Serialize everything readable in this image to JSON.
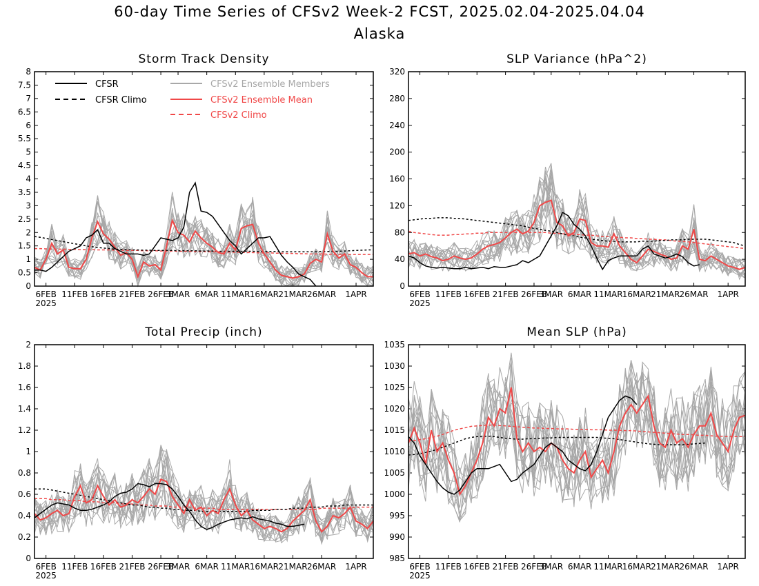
{
  "header": {
    "title": "60-day Time Series of CFSv2 Week-2 FCST, 2025.02.04-2025.04.04",
    "subtitle": "Alaska"
  },
  "colors": {
    "cfsr": "#000000",
    "members": "#a8a8a8",
    "ens_mean": "#f04848",
    "cfsv2_climo": "#f04848"
  },
  "legend": {
    "cfsr": "CFSR",
    "cfsr_climo": "CFSR Climo",
    "members": "CFSv2 Ensemble Members",
    "ens_mean": "CFSv2 Ensemble Mean",
    "cfsv2_climo": "CFSv2 Climo"
  },
  "x_ticks": [
    "6FEB",
    "11FEB",
    "16FEB",
    "21FEB",
    "26FEB",
    "3MAR",
    "6MAR",
    "11MAR",
    "16MAR",
    "21MAR",
    "26MAR",
    "1APR"
  ],
  "x_year": "2025",
  "chart_data": [
    {
      "type": "line",
      "title": "Storm Track Density",
      "ylim": [
        0,
        8
      ],
      "yticks": [
        "0",
        "0.5",
        "1",
        "1.5",
        "2",
        "2.5",
        "3",
        "3.5",
        "4",
        "4.5",
        "5",
        "5.5",
        "6",
        "6.5",
        "7",
        "7.5",
        "8"
      ],
      "x": [
        "2025-02-04",
        "2025-04-04"
      ],
      "cfsr": [
        0.6,
        0.6,
        0.55,
        0.7,
        0.9,
        1.1,
        1.3,
        1.4,
        1.5,
        1.8,
        1.9,
        2.1,
        1.6,
        1.6,
        1.4,
        1.3,
        1.2,
        1.2,
        1.2,
        1.15,
        1.2,
        1.5,
        1.8,
        1.75,
        1.7,
        1.8,
        2.2,
        3.5,
        3.85,
        2.8,
        2.75,
        2.6,
        2.3,
        2.0,
        1.7,
        1.5,
        1.2,
        1.4,
        1.6,
        1.8,
        1.8,
        1.85,
        1.5,
        1.15,
        0.9,
        0.7,
        0.45,
        0.35,
        0.25,
        0.0
      ],
      "cfsr_climo": [
        1.85,
        1.82,
        1.78,
        1.74,
        1.7,
        1.66,
        1.62,
        1.58,
        1.54,
        1.5,
        1.47,
        1.44,
        1.42,
        1.4,
        1.38,
        1.37,
        1.36,
        1.35,
        1.35,
        1.34,
        1.34,
        1.33,
        1.33,
        1.33,
        1.33,
        1.32,
        1.32,
        1.32,
        1.32,
        1.31,
        1.31,
        1.31,
        1.3,
        1.3,
        1.3,
        1.3,
        1.3,
        1.3,
        1.3,
        1.29,
        1.29,
        1.29,
        1.29,
        1.28,
        1.28,
        1.28,
        1.28,
        1.28,
        1.28,
        1.28,
        1.29,
        1.29,
        1.3,
        1.3,
        1.31,
        1.32,
        1.33,
        1.34,
        1.35,
        1.35
      ],
      "ens_mean": [
        0.7,
        0.6,
        1.0,
        1.6,
        1.2,
        1.35,
        0.7,
        0.65,
        0.65,
        1.0,
        1.8,
        2.4,
        1.95,
        1.75,
        1.45,
        1.15,
        1.25,
        1.0,
        0.35,
        0.9,
        0.75,
        0.8,
        0.6,
        1.5,
        2.45,
        2.0,
        1.9,
        1.65,
        2.05,
        1.8,
        1.6,
        1.45,
        1.25,
        1.2,
        1.6,
        1.35,
        2.15,
        2.25,
        2.3,
        1.6,
        1.2,
        0.9,
        0.6,
        0.4,
        0.35,
        0.3,
        0.35,
        0.45,
        0.85,
        1.0,
        0.9,
        1.95,
        1.3,
        1.05,
        1.2,
        0.8,
        0.7,
        0.5,
        0.35,
        0.35
      ],
      "cfsv2_climo": [
        1.4,
        1.4,
        1.39,
        1.39,
        1.38,
        1.38,
        1.37,
        1.37,
        1.36,
        1.36,
        1.36,
        1.35,
        1.35,
        1.35,
        1.34,
        1.34,
        1.33,
        1.33,
        1.33,
        1.32,
        1.32,
        1.32,
        1.31,
        1.31,
        1.31,
        1.3,
        1.3,
        1.3,
        1.29,
        1.29,
        1.28,
        1.28,
        1.28,
        1.27,
        1.27,
        1.26,
        1.26,
        1.25,
        1.25,
        1.24,
        1.24,
        1.24,
        1.23,
        1.23,
        1.22,
        1.22,
        1.21,
        1.21,
        1.2,
        1.2,
        1.2,
        1.19,
        1.19,
        1.18,
        1.18,
        1.18,
        1.18,
        1.18,
        1.18,
        1.18
      ]
    },
    {
      "type": "line",
      "title": "SLP Variance (hPa^2)",
      "ylim": [
        0,
        320
      ],
      "yticks": [
        "0",
        "40",
        "80",
        "120",
        "160",
        "200",
        "240",
        "280",
        "320"
      ],
      "x": [
        "2025-02-04",
        "2025-04-04"
      ],
      "cfsr": [
        45,
        42,
        35,
        30,
        28,
        27,
        28,
        27,
        26,
        26,
        28,
        26,
        27,
        28,
        26,
        29,
        28,
        28,
        30,
        32,
        38,
        35,
        40,
        45,
        60,
        75,
        90,
        110,
        105,
        92,
        85,
        75,
        60,
        42,
        25,
        38,
        42,
        45,
        45,
        45,
        45,
        55,
        60,
        48,
        45,
        42,
        44,
        48,
        44,
        35,
        30,
        32
      ],
      "cfsr_climo": [
        98,
        99,
        100,
        101,
        101,
        102,
        102,
        102,
        101,
        101,
        100,
        99,
        98,
        97,
        96,
        95,
        94,
        93,
        92,
        91,
        90,
        88,
        86,
        85,
        83,
        82,
        80,
        78,
        76,
        75,
        73,
        72,
        70,
        69,
        68,
        67,
        67,
        66,
        66,
        66,
        66,
        67,
        67,
        67,
        68,
        68,
        69,
        69,
        69,
        70,
        70,
        70,
        70,
        69,
        68,
        67,
        66,
        65,
        62,
        60
      ],
      "ens_mean": [
        48,
        50,
        45,
        48,
        44,
        42,
        38,
        40,
        45,
        42,
        40,
        42,
        48,
        55,
        60,
        62,
        65,
        72,
        80,
        85,
        78,
        82,
        95,
        120,
        125,
        128,
        95,
        90,
        75,
        80,
        100,
        98,
        65,
        60,
        60,
        58,
        78,
        60,
        50,
        40,
        35,
        45,
        55,
        52,
        48,
        45,
        40,
        42,
        60,
        55,
        85,
        40,
        38,
        45,
        40,
        35,
        30,
        28,
        25,
        28
      ],
      "cfsv2_climo": [
        82,
        80,
        79,
        78,
        77,
        76,
        76,
        76,
        77,
        77,
        78,
        78,
        79,
        79,
        80,
        80,
        80,
        80,
        80,
        80,
        80,
        80,
        80,
        80,
        80,
        79,
        79,
        78,
        78,
        77,
        77,
        76,
        76,
        75,
        74,
        74,
        73,
        73,
        72,
        72,
        71,
        71,
        70,
        70,
        69,
        69,
        68,
        67,
        67,
        66,
        65,
        64,
        63,
        62,
        61,
        60,
        59,
        58,
        57,
        56
      ]
    },
    {
      "type": "line",
      "title": "Total Precip (inch)",
      "ylim": [
        0,
        2
      ],
      "yticks": [
        "0",
        "0.2",
        "0.4",
        "0.6",
        "0.8",
        "1",
        "1.2",
        "1.4",
        "1.6",
        "1.8",
        "2"
      ],
      "x": [
        "2025-02-04",
        "2025-04-04"
      ],
      "cfsr": [
        0.38,
        0.42,
        0.46,
        0.5,
        0.52,
        0.51,
        0.5,
        0.47,
        0.45,
        0.45,
        0.46,
        0.48,
        0.5,
        0.53,
        0.58,
        0.61,
        0.62,
        0.65,
        0.7,
        0.69,
        0.67,
        0.7,
        0.7,
        0.69,
        0.65,
        0.58,
        0.5,
        0.44,
        0.36,
        0.3,
        0.27,
        0.29,
        0.32,
        0.34,
        0.36,
        0.37,
        0.38,
        0.37,
        0.39,
        0.37,
        0.36,
        0.35,
        0.33,
        0.32,
        0.3,
        0.3,
        0.31,
        0.32
      ],
      "cfsr_climo": [
        0.65,
        0.65,
        0.65,
        0.64,
        0.63,
        0.62,
        0.61,
        0.6,
        0.59,
        0.58,
        0.57,
        0.56,
        0.55,
        0.54,
        0.53,
        0.52,
        0.51,
        0.5,
        0.5,
        0.49,
        0.48,
        0.48,
        0.47,
        0.47,
        0.46,
        0.46,
        0.45,
        0.45,
        0.45,
        0.44,
        0.44,
        0.44,
        0.44,
        0.44,
        0.44,
        0.44,
        0.44,
        0.44,
        0.45,
        0.45,
        0.45,
        0.45,
        0.46,
        0.46,
        0.46,
        0.47,
        0.47,
        0.47,
        0.48,
        0.48,
        0.48,
        0.49,
        0.49,
        0.49,
        0.5,
        0.5,
        0.5,
        0.5,
        0.5,
        0.5
      ],
      "ens_mean": [
        0.42,
        0.36,
        0.38,
        0.42,
        0.45,
        0.4,
        0.42,
        0.58,
        0.68,
        0.52,
        0.55,
        0.68,
        0.58,
        0.5,
        0.55,
        0.48,
        0.5,
        0.55,
        0.52,
        0.58,
        0.65,
        0.6,
        0.74,
        0.72,
        0.58,
        0.5,
        0.42,
        0.55,
        0.45,
        0.48,
        0.4,
        0.45,
        0.42,
        0.55,
        0.65,
        0.5,
        0.4,
        0.45,
        0.36,
        0.32,
        0.28,
        0.3,
        0.28,
        0.25,
        0.28,
        0.35,
        0.4,
        0.45,
        0.55,
        0.35,
        0.25,
        0.3,
        0.4,
        0.38,
        0.42,
        0.48,
        0.35,
        0.32,
        0.28,
        0.35
      ],
      "cfsv2_climo": [
        0.56,
        0.56,
        0.56,
        0.55,
        0.55,
        0.55,
        0.54,
        0.54,
        0.54,
        0.53,
        0.53,
        0.53,
        0.52,
        0.52,
        0.52,
        0.51,
        0.51,
        0.51,
        0.5,
        0.5,
        0.5,
        0.49,
        0.49,
        0.49,
        0.48,
        0.48,
        0.48,
        0.48,
        0.47,
        0.47,
        0.47,
        0.47,
        0.46,
        0.46,
        0.46,
        0.46,
        0.46,
        0.46,
        0.46,
        0.46,
        0.46,
        0.46,
        0.46,
        0.46,
        0.46,
        0.46,
        0.46,
        0.46,
        0.46,
        0.46,
        0.47,
        0.47,
        0.47,
        0.47,
        0.47,
        0.47,
        0.48,
        0.48,
        0.48,
        0.48
      ]
    },
    {
      "type": "line",
      "title": "Mean SLP (hPa)",
      "ylim": [
        985,
        1035
      ],
      "yticks": [
        "985",
        "990",
        "995",
        "1000",
        "1005",
        "1010",
        "1015",
        "1020",
        "1025",
        "1030",
        "1035"
      ],
      "x": [
        "2025-02-04",
        "2025-04-04"
      ],
      "cfsr": [
        1013.5,
        1012,
        1009,
        1007,
        1005,
        1003,
        1001.5,
        1000.5,
        1000,
        1001,
        1003,
        1005,
        1006,
        1006,
        1006,
        1006.5,
        1007,
        1005,
        1003,
        1003.5,
        1005,
        1006,
        1007,
        1009,
        1011,
        1012,
        1011,
        1010,
        1008,
        1007,
        1006,
        1005.5,
        1007,
        1010,
        1014,
        1018,
        1020,
        1022,
        1023,
        1022.5,
        1021
      ],
      "cfsr_climo": [
        1009.2,
        1009.3,
        1009.5,
        1009.8,
        1010.1,
        1010.5,
        1011,
        1011.5,
        1012,
        1012.5,
        1013,
        1013.3,
        1013.5,
        1013.6,
        1013.6,
        1013.5,
        1013.3,
        1013.1,
        1013,
        1012.9,
        1012.9,
        1013,
        1013,
        1013.1,
        1013.2,
        1013.2,
        1013.3,
        1013.3,
        1013.3,
        1013.3,
        1013.3,
        1013.3,
        1013.3,
        1013.3,
        1013.2,
        1013.1,
        1013,
        1012.8,
        1012.6,
        1012.4,
        1012.2,
        1012,
        1011.8,
        1011.7,
        1011.6,
        1011.6,
        1011.6,
        1011.6,
        1011.6,
        1011.7,
        1011.8,
        1011.9,
        1012
      ],
      "ens_mean": [
        1012,
        1015.5,
        1012,
        1007,
        1015,
        1010,
        1012,
        1008,
        1005,
        1000,
        1002,
        1005,
        1008,
        1012,
        1018,
        1016,
        1020,
        1019,
        1025,
        1013,
        1010,
        1012,
        1010,
        1011,
        1010,
        1012,
        1011,
        1008,
        1006,
        1005,
        1008,
        1010,
        1004,
        1006,
        1008,
        1005,
        1010,
        1016,
        1019,
        1021,
        1019,
        1021,
        1023,
        1016,
        1012,
        1011,
        1015,
        1012,
        1013,
        1011,
        1014,
        1016,
        1016,
        1019,
        1014,
        1012,
        1010,
        1015,
        1018,
        1018.5
      ],
      "cfsv2_climo": [
        1012.5,
        1012.6,
        1012.8,
        1013,
        1013.3,
        1013.6,
        1014,
        1014.5,
        1015,
        1015.3,
        1015.6,
        1015.9,
        1016,
        1016.1,
        1016.2,
        1016.2,
        1016.1,
        1016,
        1015.9,
        1015.8,
        1015.7,
        1015.6,
        1015.5,
        1015.5,
        1015.4,
        1015.4,
        1015.3,
        1015.3,
        1015.3,
        1015.2,
        1015.2,
        1015.2,
        1015.1,
        1015.1,
        1015.1,
        1015,
        1015,
        1015,
        1014.9,
        1014.9,
        1014.8,
        1014.7,
        1014.6,
        1014.5,
        1014.4,
        1014.3,
        1014.2,
        1014.1,
        1014,
        1014,
        1013.9,
        1013.8,
        1013.8,
        1013.7,
        1013.6,
        1013.6,
        1013.5,
        1013.5,
        1013.5,
        1013.5
      ]
    }
  ]
}
